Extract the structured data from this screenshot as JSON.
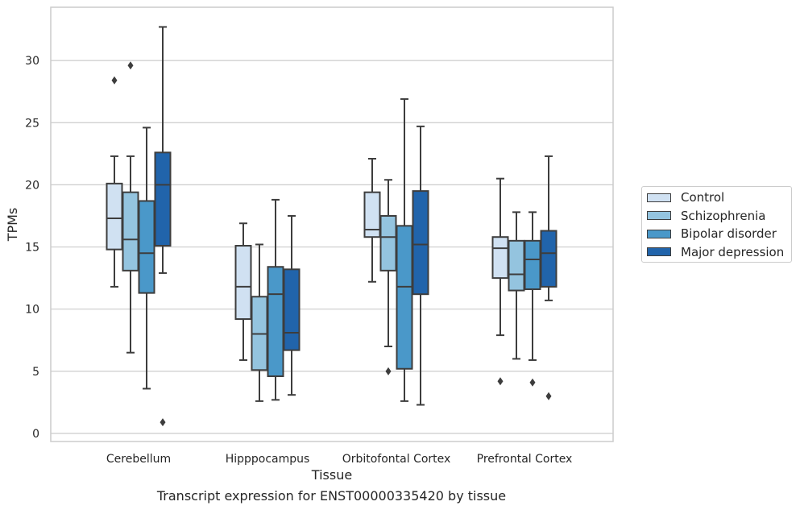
{
  "chart_data": {
    "type": "box",
    "title": "",
    "caption": "Transcript expression for ENST00000335420 by tissue",
    "xlabel": "Tissue",
    "ylabel": "TPMs",
    "categories": [
      "Cerebellum",
      "Hipppocampus",
      "Orbitofontal Cortex",
      "Prefrontal Cortex"
    ],
    "ylim": [
      -0.6,
      34.0
    ],
    "yticks": [
      0,
      5,
      10,
      15,
      20,
      25,
      30
    ],
    "grid": "horizontal",
    "legend_position": "right",
    "series": [
      {
        "name": "Control",
        "color": "#d0e1f2",
        "boxes": [
          {
            "whislo": 11.8,
            "q1": 14.8,
            "med": 17.3,
            "q3": 20.1,
            "whishi": 22.3,
            "fliers": [
              28.4
            ]
          },
          {
            "whislo": 5.9,
            "q1": 9.2,
            "med": 11.8,
            "q3": 15.1,
            "whishi": 16.9,
            "fliers": []
          },
          {
            "whislo": 12.2,
            "q1": 15.8,
            "med": 16.4,
            "q3": 19.4,
            "whishi": 22.1,
            "fliers": []
          },
          {
            "whislo": 7.9,
            "q1": 12.5,
            "med": 14.9,
            "q3": 15.8,
            "whishi": 20.5,
            "fliers": [
              4.2
            ]
          }
        ]
      },
      {
        "name": "Schizophrenia",
        "color": "#94c4df",
        "boxes": [
          {
            "whislo": 6.5,
            "q1": 13.1,
            "med": 15.6,
            "q3": 19.4,
            "whishi": 22.3,
            "fliers": [
              29.6
            ]
          },
          {
            "whislo": 2.6,
            "q1": 5.1,
            "med": 8.0,
            "q3": 11.0,
            "whishi": 15.2,
            "fliers": []
          },
          {
            "whislo": 7.0,
            "q1": 13.1,
            "med": 15.8,
            "q3": 17.5,
            "whishi": 20.4,
            "fliers": [
              5.0
            ]
          },
          {
            "whislo": 6.0,
            "q1": 11.5,
            "med": 12.8,
            "q3": 15.5,
            "whishi": 17.8,
            "fliers": []
          }
        ]
      },
      {
        "name": "Bipolar disorder",
        "color": "#4a98c9",
        "boxes": [
          {
            "whislo": 3.6,
            "q1": 11.3,
            "med": 14.5,
            "q3": 18.7,
            "whishi": 24.6,
            "fliers": []
          },
          {
            "whislo": 2.7,
            "q1": 4.6,
            "med": 11.2,
            "q3": 13.4,
            "whishi": 18.8,
            "fliers": []
          },
          {
            "whislo": 2.6,
            "q1": 5.2,
            "med": 11.8,
            "q3": 16.7,
            "whishi": 26.9,
            "fliers": []
          },
          {
            "whislo": 5.9,
            "q1": 11.6,
            "med": 14.0,
            "q3": 15.5,
            "whishi": 17.8,
            "fliers": [
              4.1
            ]
          }
        ]
      },
      {
        "name": "Major depression",
        "color": "#2164ab",
        "boxes": [
          {
            "whislo": 12.9,
            "q1": 15.1,
            "med": 20.0,
            "q3": 22.6,
            "whishi": 32.7,
            "fliers": [
              0.9
            ]
          },
          {
            "whislo": 3.1,
            "q1": 6.7,
            "med": 8.1,
            "q3": 13.2,
            "whishi": 17.5,
            "fliers": []
          },
          {
            "whislo": 2.3,
            "q1": 11.2,
            "med": 15.2,
            "q3": 19.5,
            "whishi": 24.7,
            "fliers": []
          },
          {
            "whislo": 10.7,
            "q1": 11.8,
            "med": 14.5,
            "q3": 16.3,
            "whishi": 22.3,
            "fliers": [
              3.0
            ]
          }
        ]
      }
    ]
  }
}
